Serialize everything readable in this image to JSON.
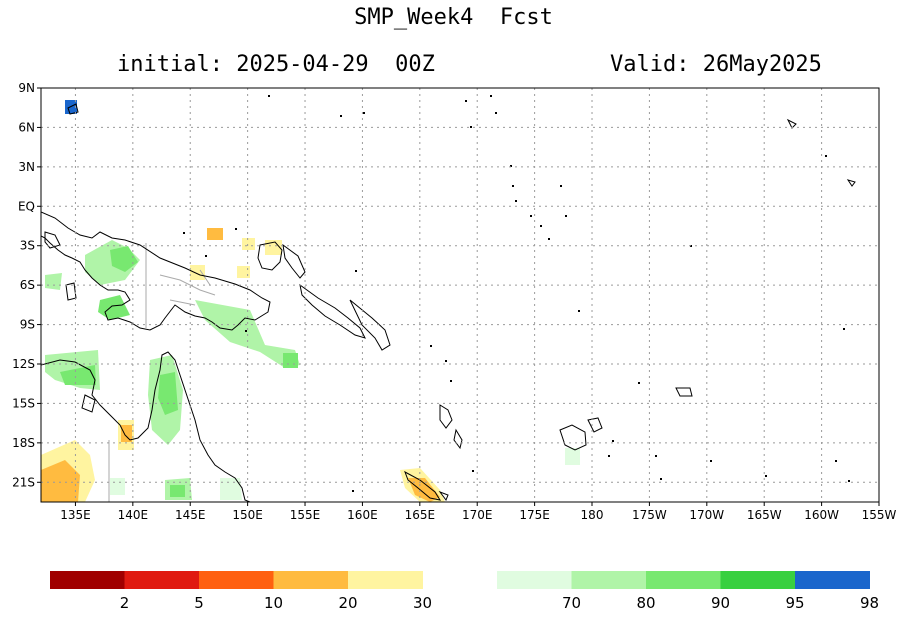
{
  "header": {
    "title": "SMP_Week4  Fcst",
    "initial": "initial: 2025-04-29  00Z",
    "valid": "Valid: 26May2025"
  },
  "map": {
    "region": "Western Pacific / Melanesia",
    "lat_range": [
      -22.5,
      9
    ],
    "lon_range": [
      132,
      205
    ],
    "lat_ticks": [
      "9N",
      "6N",
      "3N",
      "EQ",
      "3S",
      "6S",
      "9S",
      "12S",
      "15S",
      "18S",
      "21S"
    ],
    "lon_ticks": [
      "135E",
      "140E",
      "145E",
      "150E",
      "155E",
      "160E",
      "165E",
      "170E",
      "175E",
      "180",
      "175W",
      "170W",
      "165W",
      "160W",
      "155W"
    ],
    "grid": true,
    "coastline_color": "#000000",
    "border_color": "#aaaaaa"
  },
  "legend": {
    "colors": [
      "#a00000",
      "#e01a10",
      "#ff6010",
      "#ffbb40",
      "#fff4a0",
      "#e0fce0",
      "#b0f4a8",
      "#78e870",
      "#38d040",
      "#1a66cc"
    ],
    "labels": [
      "2",
      "5",
      "10",
      "20",
      "30",
      "70",
      "80",
      "90",
      "95",
      "98"
    ]
  }
}
